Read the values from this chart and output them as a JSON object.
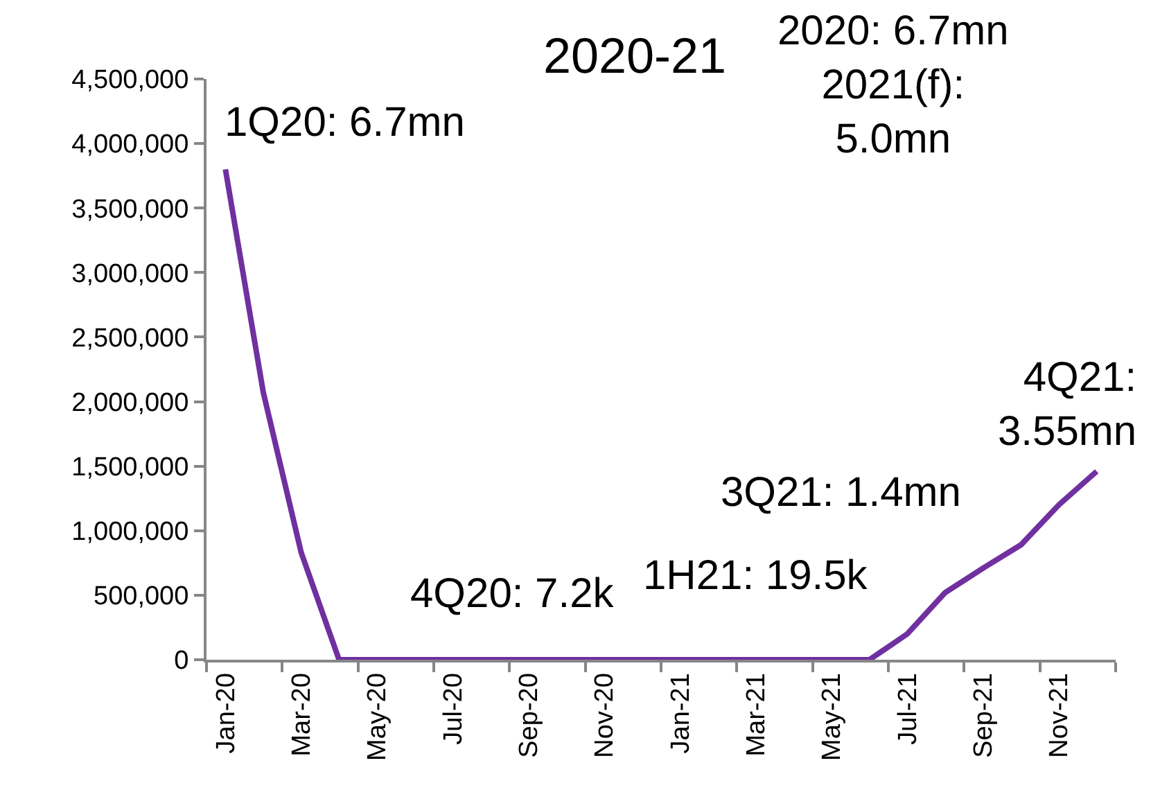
{
  "chart_data": {
    "type": "line",
    "title": "2020-21",
    "categories": [
      "Jan-20",
      null,
      "Mar-20",
      null,
      "May-20",
      null,
      "Jul-20",
      null,
      "Sep-20",
      null,
      "Nov-20",
      null,
      "Jan-21",
      null,
      "Mar-21",
      null,
      "May-21",
      null,
      "Jul-21",
      null,
      "Sep-21",
      null,
      "Nov-21",
      null
    ],
    "series": [
      {
        "color": "#7030a0",
        "values": [
          3800000,
          2070000,
          830000,
          0,
          0,
          0,
          0,
          0,
          0,
          0,
          0,
          0,
          0,
          0,
          0,
          0,
          0,
          0,
          200000,
          520000,
          710000,
          890000,
          1200000,
          1460000
        ]
      }
    ],
    "ylim": [
      0,
      4500000
    ],
    "yticks": [
      0,
      {
        "value": 500000,
        "label": "500,000"
      },
      {
        "value": 1000000,
        "label": "1,000,000"
      },
      {
        "value": 1500000,
        "label": "1,500,000"
      },
      {
        "value": 2000000,
        "label": "2,000,000"
      },
      {
        "value": 2500000,
        "label": "2,500,000"
      },
      {
        "value": 3000000,
        "label": "3,000,000"
      },
      {
        "value": 3500000,
        "label": "3,500,000"
      },
      {
        "value": 4000000,
        "label": "4,000,000"
      },
      {
        "value": 4500000,
        "label": "4,500,000"
      }
    ],
    "line_style": "solid",
    "annotations": [
      "1Q20: 6.7mn",
      "4Q20: 7.2k",
      "1H21: 19.5k",
      "3Q21: 1.4mn",
      "4Q21:\n3.55mn",
      "2020: 6.7mn\n2021(f):\n5.0mn"
    ]
  }
}
